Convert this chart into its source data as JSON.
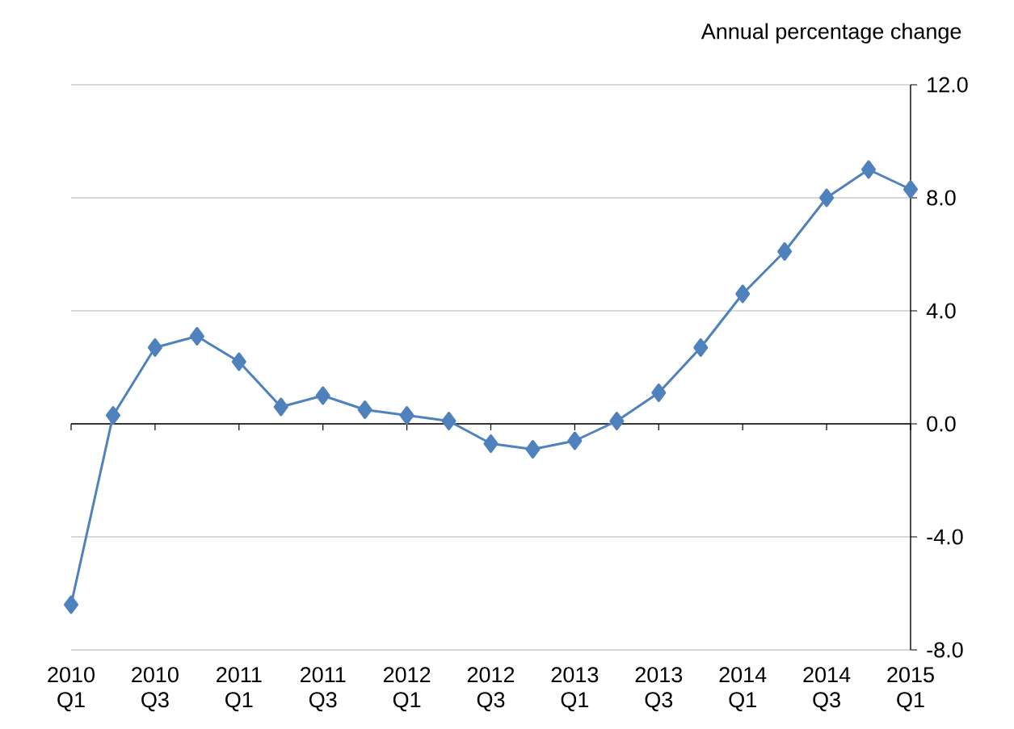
{
  "chart_data": {
    "type": "line",
    "ylabel": "Annual percentage change",
    "categories": [
      "2010 Q1",
      null,
      "2010 Q3",
      null,
      "2011 Q1",
      null,
      "2011 Q3",
      null,
      "2012 Q1",
      null,
      "2012 Q3",
      null,
      "2013 Q1",
      null,
      "2013 Q3",
      null,
      "2014 Q1",
      null,
      "2014 Q3",
      null,
      "2015 Q1"
    ],
    "series": [
      {
        "color": "#4f81bd",
        "values": [
          -6.4,
          0.3,
          2.7,
          3.1,
          2.2,
          0.6,
          1.0,
          0.5,
          0.3,
          0.1,
          -0.7,
          -0.9,
          -0.6,
          0.1,
          1.1,
          2.7,
          4.6,
          6.1,
          8.0,
          9.0,
          8.3
        ]
      }
    ],
    "ylim": [
      -8,
      12
    ],
    "yticks": [
      {
        "value": -8,
        "label": "-8.0"
      },
      {
        "value": -4,
        "label": "-4.0"
      },
      {
        "value": 0,
        "label": "0.0"
      },
      {
        "value": 4,
        "label": "4.0"
      },
      {
        "value": 8,
        "label": "8.0"
      },
      {
        "value": 12,
        "label": "12.0"
      }
    ],
    "grid": "y",
    "marker": "diamond",
    "line_style": "solid"
  }
}
